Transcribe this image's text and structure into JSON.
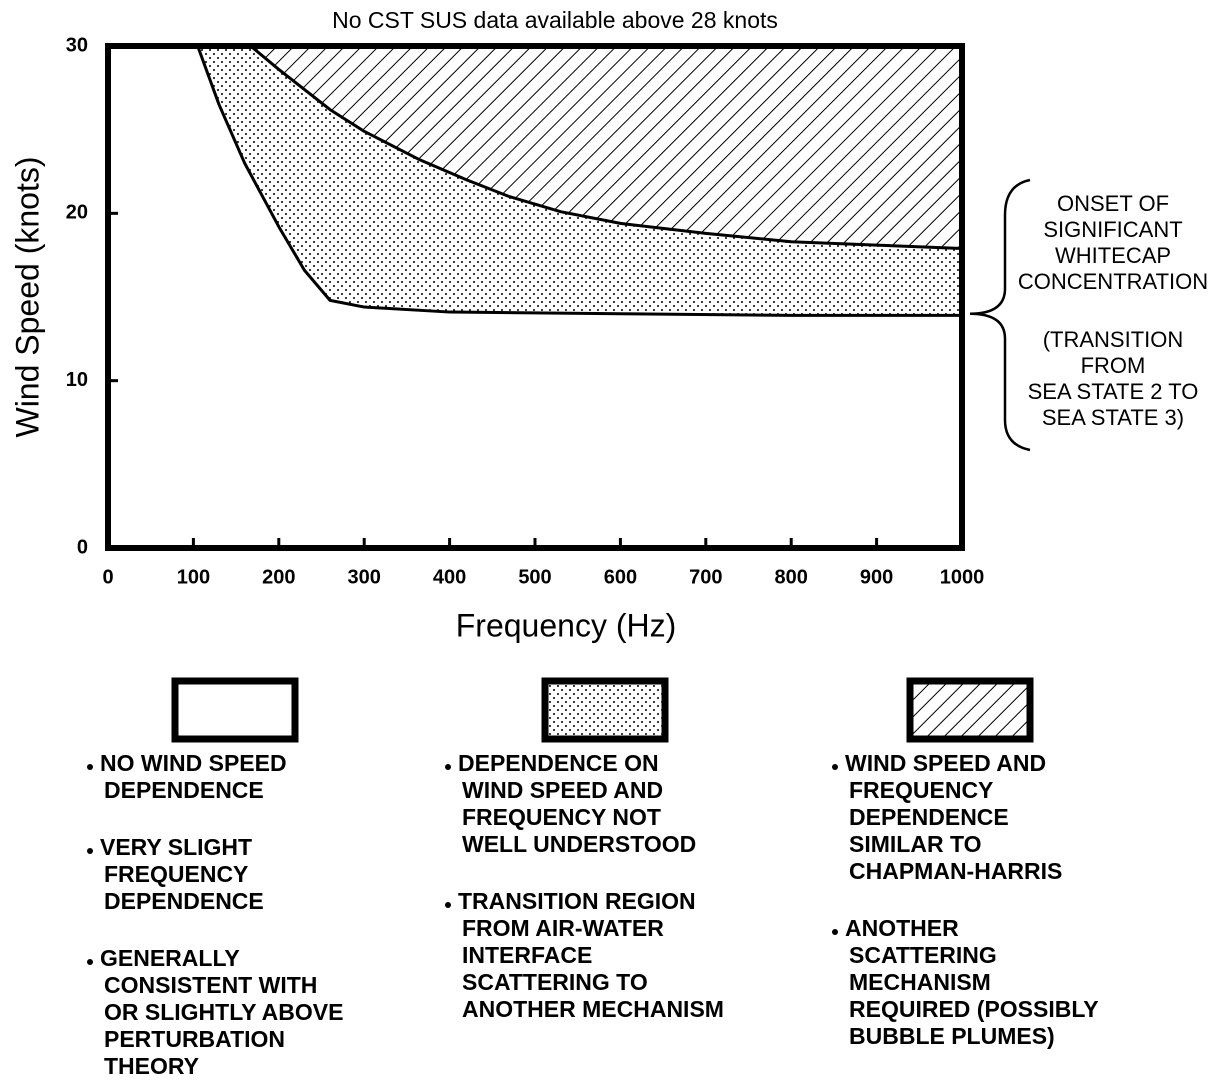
{
  "chart_data": {
    "type": "region",
    "title": "No CST SUS data available above 28 knots",
    "xlabel": "Frequency (Hz)",
    "ylabel": "Wind Speed (knots)",
    "xlim": [
      0,
      1000
    ],
    "ylim": [
      0,
      30
    ],
    "xticks": [
      0,
      100,
      200,
      300,
      400,
      500,
      600,
      700,
      800,
      900,
      1000
    ],
    "yticks": [
      0,
      10,
      20,
      30
    ],
    "series": [
      {
        "fill": "dots",
        "x": [
          105,
          130,
          160,
          200,
          230,
          260,
          300,
          400,
          600,
          800,
          1000
        ],
        "values": [
          30,
          26.5,
          23,
          19.2,
          16.6,
          14.8,
          14.4,
          14.1,
          14,
          13.9,
          13.9
        ]
      },
      {
        "fill": "hatch",
        "x": [
          167,
          200,
          260,
          300,
          365,
          420,
          470,
          530,
          600,
          700,
          800,
          900,
          1000
        ],
        "values": [
          30,
          28.6,
          26.2,
          24.9,
          23.2,
          22,
          21,
          20.1,
          19.4,
          18.8,
          18.3,
          18.1,
          17.9
        ]
      }
    ],
    "annotation": {
      "y": 14,
      "lines": [
        "ONSET OF",
        "SIGNIFICANT",
        "WHITECAP",
        "CONCENTRATION"
      ],
      "lines2": [
        "(TRANSITION",
        "FROM",
        "SEA STATE 2 TO",
        "SEA STATE 3)"
      ]
    },
    "legend": [
      {
        "fill": "none",
        "notes": [
          [
            "NO WIND SPEED",
            "DEPENDENCE"
          ],
          [
            "VERY SLIGHT",
            "FREQUENCY",
            "DEPENDENCE"
          ],
          [
            "GENERALLY",
            "CONSISTENT WITH",
            "OR SLIGHTLY ABOVE",
            "PERTURBATION",
            "THEORY"
          ]
        ]
      },
      {
        "fill": "dots",
        "notes": [
          [
            "DEPENDENCE ON",
            "WIND SPEED AND",
            "FREQUENCY NOT",
            "WELL UNDERSTOOD"
          ],
          [
            "TRANSITION REGION",
            "FROM AIR-WATER",
            "INTERFACE",
            "SCATTERING TO",
            "ANOTHER MECHANISM"
          ]
        ]
      },
      {
        "fill": "hatch",
        "notes": [
          [
            "WIND SPEED AND",
            "FREQUENCY",
            "DEPENDENCE",
            "SIMILAR TO",
            "CHAPMAN-HARRIS"
          ],
          [
            "ANOTHER",
            "SCATTERING",
            "MECHANISM",
            "REQUIRED (POSSIBLY",
            "BUBBLE PLUMES)"
          ]
        ]
      }
    ]
  }
}
